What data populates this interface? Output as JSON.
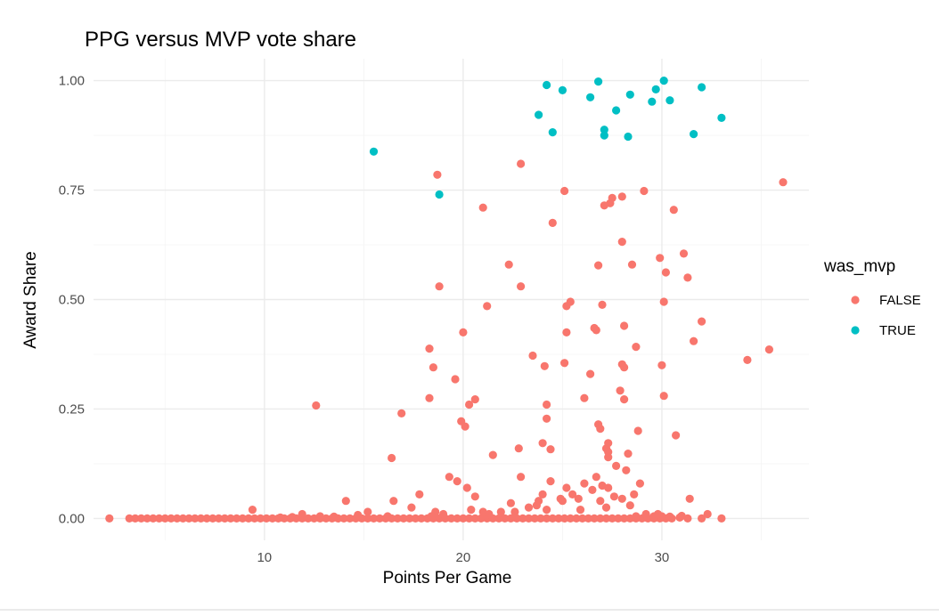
{
  "chart_data": {
    "type": "scatter",
    "title": "PPG versus MVP vote share",
    "xlabel": "Points Per Game",
    "ylabel": "Award Share",
    "xlim": [
      1.4,
      37.4
    ],
    "ylim": [
      -0.05,
      1.05
    ],
    "x_ticks": [
      10,
      20,
      30
    ],
    "x_tick_labels": [
      "10",
      "20",
      "30"
    ],
    "y_ticks": [
      0,
      0.25,
      0.5,
      0.75,
      1.0
    ],
    "y_tick_labels": [
      "0.00",
      "0.25",
      "0.50",
      "0.75",
      "1.00"
    ],
    "grid": true,
    "legend": {
      "title": "was_mvp",
      "position": "right",
      "entries": [
        {
          "label": "FALSE",
          "color": "#F8766D"
        },
        {
          "label": "TRUE",
          "color": "#00BFC4"
        }
      ]
    },
    "series": [
      {
        "name": "FALSE",
        "color": "#F8766D",
        "points": [
          [
            2.2,
            0
          ],
          [
            3.2,
            0
          ],
          [
            3.5,
            0
          ],
          [
            3.8,
            0
          ],
          [
            4.1,
            0
          ],
          [
            4.4,
            0
          ],
          [
            4.7,
            0
          ],
          [
            5.0,
            0
          ],
          [
            5.3,
            0
          ],
          [
            5.6,
            0
          ],
          [
            5.9,
            0
          ],
          [
            6.2,
            0
          ],
          [
            6.5,
            0
          ],
          [
            6.8,
            0
          ],
          [
            7.1,
            0
          ],
          [
            7.4,
            0
          ],
          [
            7.7,
            0
          ],
          [
            8.0,
            0
          ],
          [
            8.3,
            0
          ],
          [
            8.6,
            0
          ],
          [
            8.9,
            0
          ],
          [
            9.2,
            0
          ],
          [
            9.5,
            0
          ],
          [
            9.8,
            0
          ],
          [
            10.1,
            0
          ],
          [
            10.4,
            0
          ],
          [
            10.7,
            0
          ],
          [
            11.0,
            0
          ],
          [
            11.3,
            0
          ],
          [
            11.6,
            0
          ],
          [
            11.9,
            0
          ],
          [
            12.2,
            0
          ],
          [
            12.5,
            0
          ],
          [
            12.8,
            0
          ],
          [
            13.1,
            0
          ],
          [
            13.4,
            0
          ],
          [
            13.7,
            0
          ],
          [
            14.0,
            0
          ],
          [
            14.3,
            0
          ],
          [
            14.6,
            0
          ],
          [
            14.9,
            0
          ],
          [
            15.2,
            0
          ],
          [
            15.5,
            0
          ],
          [
            15.8,
            0
          ],
          [
            16.1,
            0
          ],
          [
            16.4,
            0
          ],
          [
            16.7,
            0
          ],
          [
            17.0,
            0
          ],
          [
            17.3,
            0
          ],
          [
            17.6,
            0
          ],
          [
            17.9,
            0
          ],
          [
            18.2,
            0
          ],
          [
            18.5,
            0
          ],
          [
            18.8,
            0
          ],
          [
            19.1,
            0
          ],
          [
            19.4,
            0
          ],
          [
            19.7,
            0
          ],
          [
            20.0,
            0
          ],
          [
            20.3,
            0
          ],
          [
            20.6,
            0
          ],
          [
            20.9,
            0
          ],
          [
            21.2,
            0
          ],
          [
            21.5,
            0
          ],
          [
            21.8,
            0
          ],
          [
            22.1,
            0
          ],
          [
            22.4,
            0
          ],
          [
            22.7,
            0
          ],
          [
            23.0,
            0
          ],
          [
            23.3,
            0
          ],
          [
            23.6,
            0
          ],
          [
            23.9,
            0
          ],
          [
            24.2,
            0
          ],
          [
            24.5,
            0
          ],
          [
            24.8,
            0
          ],
          [
            25.1,
            0
          ],
          [
            25.4,
            0
          ],
          [
            25.7,
            0
          ],
          [
            26.0,
            0
          ],
          [
            26.3,
            0
          ],
          [
            26.6,
            0
          ],
          [
            26.9,
            0
          ],
          [
            27.2,
            0
          ],
          [
            27.5,
            0
          ],
          [
            27.8,
            0
          ],
          [
            28.1,
            0
          ],
          [
            28.4,
            0
          ],
          [
            28.7,
            0
          ],
          [
            29.0,
            0
          ],
          [
            29.3,
            0
          ],
          [
            29.6,
            0
          ],
          [
            29.9,
            0
          ],
          [
            30.2,
            0
          ],
          [
            30.5,
            0
          ],
          [
            31.3,
            0
          ],
          [
            32.0,
            0
          ],
          [
            33.0,
            0
          ],
          [
            32.3,
            0.01
          ],
          [
            9.4,
            0.02
          ],
          [
            11.9,
            0.01
          ],
          [
            14.1,
            0.04
          ],
          [
            15.2,
            0.015
          ],
          [
            16.5,
            0.04
          ],
          [
            17.4,
            0.025
          ],
          [
            17.8,
            0.055
          ],
          [
            18.6,
            0.015
          ],
          [
            19.3,
            0.095
          ],
          [
            19.7,
            0.085
          ],
          [
            20.2,
            0.07
          ],
          [
            20.6,
            0.05
          ],
          [
            21.0,
            0.015
          ],
          [
            21.9,
            0.015
          ],
          [
            22.4,
            0.035
          ],
          [
            22.9,
            0.095
          ],
          [
            23.3,
            0.025
          ],
          [
            23.7,
            0.03
          ],
          [
            24.0,
            0.055
          ],
          [
            24.4,
            0.085
          ],
          [
            24.9,
            0.045
          ],
          [
            25.2,
            0.07
          ],
          [
            25.5,
            0.055
          ],
          [
            25.8,
            0.045
          ],
          [
            26.1,
            0.08
          ],
          [
            26.5,
            0.065
          ],
          [
            26.7,
            0.095
          ],
          [
            27.0,
            0.075
          ],
          [
            27.3,
            0.07
          ],
          [
            27.6,
            0.05
          ],
          [
            28.0,
            0.045
          ],
          [
            28.2,
            0.11
          ],
          [
            28.4,
            0.03
          ],
          [
            28.6,
            0.055
          ],
          [
            28.9,
            0.08
          ],
          [
            29.2,
            0.01
          ],
          [
            29.6,
            0.005
          ],
          [
            30.0,
            0.005
          ],
          [
            31.4,
            0.045
          ],
          [
            23.8,
            0.04
          ],
          [
            25.0,
            0.04
          ],
          [
            26.9,
            0.04
          ],
          [
            27.2,
            0.025
          ],
          [
            25.9,
            0.02
          ],
          [
            24.2,
            0.02
          ],
          [
            22.6,
            0.015
          ],
          [
            21.3,
            0.01
          ],
          [
            20.4,
            0.02
          ],
          [
            19.0,
            0.01
          ],
          [
            18.4,
            0.005
          ],
          [
            16.2,
            0.005
          ],
          [
            14.7,
            0.008
          ],
          [
            13.5,
            0.004
          ],
          [
            12.8,
            0.005
          ],
          [
            11.4,
            0.003
          ],
          [
            10.8,
            0.002
          ],
          [
            28.7,
            0.005
          ],
          [
            29.8,
            0.01
          ],
          [
            30.4,
            0.004
          ],
          [
            30.9,
            0.002
          ],
          [
            31.0,
            0.006
          ],
          [
            12.6,
            0.258
          ],
          [
            16.4,
            0.138
          ],
          [
            16.9,
            0.24
          ],
          [
            18.3,
            0.388
          ],
          [
            18.5,
            0.345
          ],
          [
            18.3,
            0.275
          ],
          [
            18.7,
            0.785
          ],
          [
            18.8,
            0.53
          ],
          [
            19.6,
            0.318
          ],
          [
            19.9,
            0.222
          ],
          [
            20.0,
            0.425
          ],
          [
            20.1,
            0.21
          ],
          [
            20.3,
            0.26
          ],
          [
            20.6,
            0.272
          ],
          [
            21.0,
            0.71
          ],
          [
            21.2,
            0.485
          ],
          [
            21.5,
            0.145
          ],
          [
            22.3,
            0.58
          ],
          [
            22.8,
            0.16
          ],
          [
            22.9,
            0.81
          ],
          [
            22.9,
            0.53
          ],
          [
            23.5,
            0.372
          ],
          [
            24.0,
            0.172
          ],
          [
            24.1,
            0.348
          ],
          [
            24.2,
            0.228
          ],
          [
            24.4,
            0.158
          ],
          [
            24.5,
            0.675
          ],
          [
            25.1,
            0.748
          ],
          [
            25.1,
            0.355
          ],
          [
            25.2,
            0.425
          ],
          [
            25.2,
            0.485
          ],
          [
            25.4,
            0.495
          ],
          [
            26.1,
            0.275
          ],
          [
            26.4,
            0.33
          ],
          [
            26.6,
            0.435
          ],
          [
            26.7,
            0.43
          ],
          [
            26.8,
            0.578
          ],
          [
            26.8,
            0.215
          ],
          [
            26.9,
            0.205
          ],
          [
            27.0,
            0.488
          ],
          [
            27.1,
            0.715
          ],
          [
            27.2,
            0.16
          ],
          [
            27.3,
            0.172
          ],
          [
            27.4,
            0.72
          ],
          [
            27.5,
            0.732
          ],
          [
            27.7,
            0.12
          ],
          [
            27.9,
            0.292
          ],
          [
            28.0,
            0.735
          ],
          [
            28.0,
            0.352
          ],
          [
            28.0,
            0.632
          ],
          [
            28.1,
            0.44
          ],
          [
            28.1,
            0.345
          ],
          [
            28.1,
            0.272
          ],
          [
            28.3,
            0.148
          ],
          [
            28.5,
            0.58
          ],
          [
            28.7,
            0.392
          ],
          [
            28.8,
            0.2
          ],
          [
            29.1,
            0.748
          ],
          [
            29.9,
            0.595
          ],
          [
            30.0,
            0.35
          ],
          [
            30.1,
            0.28
          ],
          [
            30.1,
            0.495
          ],
          [
            30.2,
            0.562
          ],
          [
            30.6,
            0.705
          ],
          [
            30.7,
            0.19
          ],
          [
            31.1,
            0.605
          ],
          [
            31.3,
            0.55
          ],
          [
            31.6,
            0.405
          ],
          [
            32.0,
            0.45
          ],
          [
            34.3,
            0.362
          ],
          [
            35.4,
            0.386
          ],
          [
            36.1,
            0.768
          ],
          [
            27.3,
            0.14
          ],
          [
            27.3,
            0.152
          ],
          [
            24.2,
            0.26
          ]
        ]
      },
      {
        "name": "TRUE",
        "color": "#00BFC4",
        "points": [
          [
            15.5,
            0.838
          ],
          [
            18.8,
            0.74
          ],
          [
            23.8,
            0.922
          ],
          [
            24.2,
            0.99
          ],
          [
            24.5,
            0.882
          ],
          [
            25.0,
            0.978
          ],
          [
            26.4,
            0.962
          ],
          [
            26.8,
            0.998
          ],
          [
            27.1,
            0.888
          ],
          [
            27.1,
            0.875
          ],
          [
            27.7,
            0.932
          ],
          [
            28.3,
            0.872
          ],
          [
            28.4,
            0.968
          ],
          [
            29.5,
            0.952
          ],
          [
            29.7,
            0.98
          ],
          [
            30.1,
            1.0
          ],
          [
            30.4,
            0.955
          ],
          [
            31.6,
            0.878
          ],
          [
            32.0,
            0.985
          ],
          [
            33.0,
            0.915
          ]
        ]
      }
    ]
  }
}
